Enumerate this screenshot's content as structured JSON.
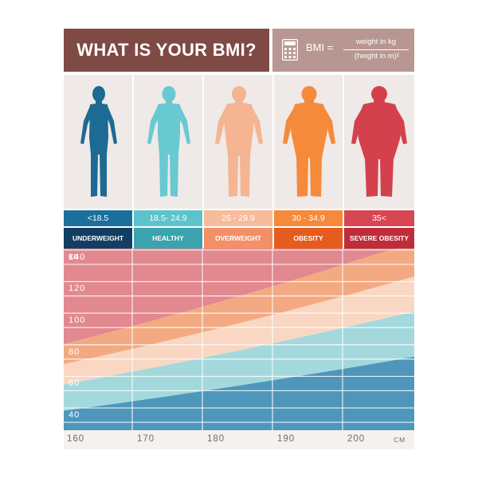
{
  "header": {
    "title": "WHAT IS YOUR BMI?",
    "formula_lhs": "BMI =",
    "formula_numerator": "weight in kg",
    "formula_denominator": "(height in m)²",
    "title_bg": "#7e4a43",
    "formula_bg": "#b89792"
  },
  "categories": [
    {
      "range": "<18.5",
      "name": "UNDERWEIGHT",
      "figure_color": "#1d6a93",
      "range_bg": "#1c6f9c",
      "name_bg": "#133e63"
    },
    {
      "range": "18.5- 24.9",
      "name": "HEALTHY",
      "figure_color": "#68c9d1",
      "range_bg": "#5cc3cc",
      "name_bg": "#3aa3ae"
    },
    {
      "range": "25 - 29.9",
      "name": "OVERWEIGHT",
      "figure_color": "#f5b592",
      "range_bg": "#f7bc9c",
      "name_bg": "#f39067"
    },
    {
      "range": "30 - 34.9",
      "name": "OBESITY",
      "figure_color": "#f58a3a",
      "range_bg": "#f6893a",
      "name_bg": "#e65b1e"
    },
    {
      "range": "35<",
      "name": "SEVERE OBESITY",
      "figure_color": "#d3414d",
      "range_bg": "#d84654",
      "name_bg": "#bf2c3a"
    }
  ],
  "chart_data": {
    "type": "area",
    "xlabel_unit": "CM",
    "ylabel_unit": "KG",
    "x_ticks": [
      160,
      170,
      180,
      190,
      200
    ],
    "y_ticks": [
      40,
      60,
      80,
      100,
      120,
      140
    ],
    "xlim": [
      160,
      210
    ],
    "ylim": [
      35,
      150
    ],
    "bmi_thresholds": [
      18.5,
      25,
      30,
      35
    ],
    "zones": [
      {
        "name": "UNDERWEIGHT",
        "color": "#4e97bb"
      },
      {
        "name": "HEALTHY",
        "color": "#a3d9dd"
      },
      {
        "name": "OVERWEIGHT",
        "color": "#f9d7c2"
      },
      {
        "name": "OBESITY",
        "color": "#f3aa82"
      },
      {
        "name": "SEVERE OBESITY",
        "color": "#e2888f"
      }
    ],
    "grid": true
  }
}
